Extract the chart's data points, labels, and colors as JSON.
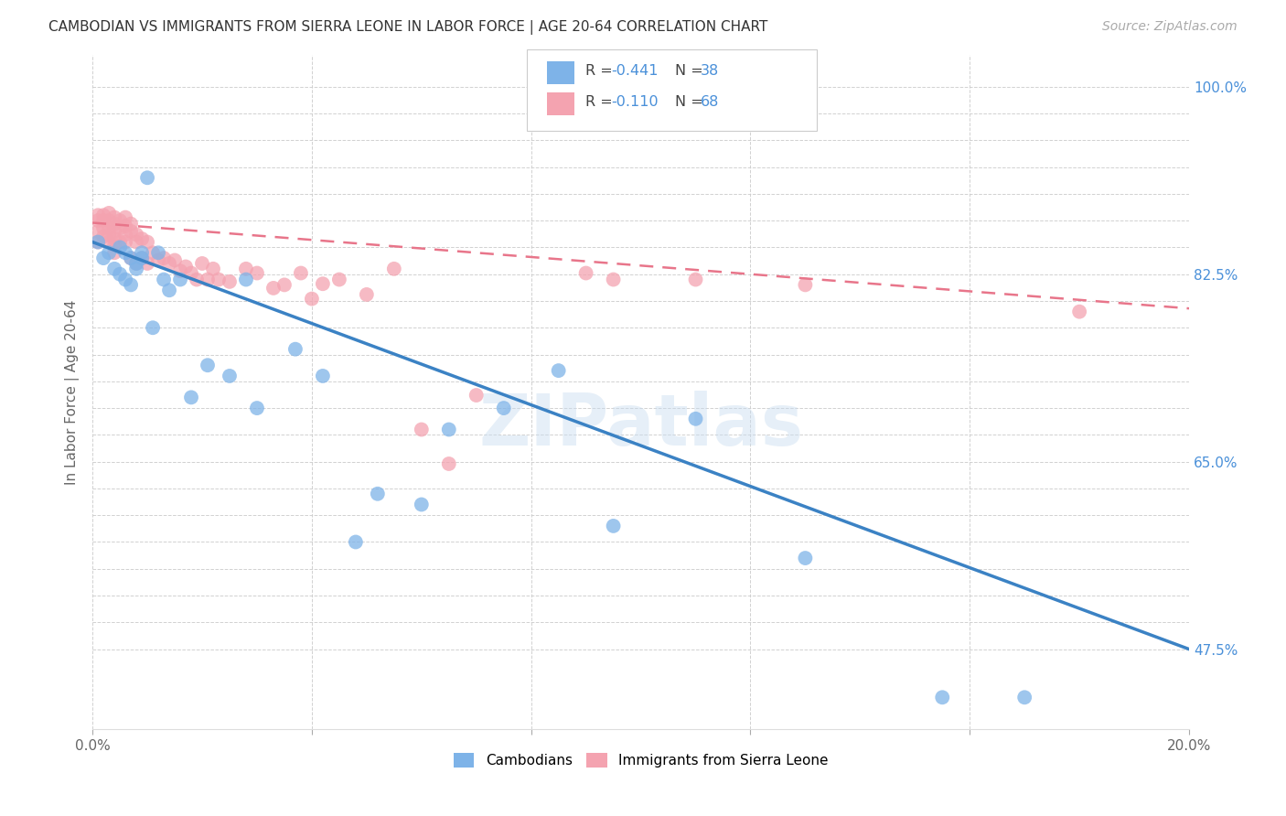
{
  "title": "CAMBODIAN VS IMMIGRANTS FROM SIERRA LEONE IN LABOR FORCE | AGE 20-64 CORRELATION CHART",
  "source": "Source: ZipAtlas.com",
  "ylabel_label": "In Labor Force | Age 20-64",
  "xlim": [
    0.0,
    0.2
  ],
  "ylim": [
    0.4,
    1.03
  ],
  "cambodian_color": "#7EB3E8",
  "sierra_leone_color": "#F4A3B0",
  "cambodian_line_color": "#3B82C4",
  "sierra_leone_line_color": "#E8758A",
  "background_color": "#ffffff",
  "watermark": "ZIPatlas",
  "cambodian_line_x": [
    0.0,
    0.2
  ],
  "cambodian_line_y": [
    0.855,
    0.475
  ],
  "sierra_line_x": [
    0.0,
    0.2
  ],
  "sierra_line_y": [
    0.873,
    0.793
  ],
  "cambodian_scatter_x": [
    0.001,
    0.002,
    0.003,
    0.004,
    0.005,
    0.005,
    0.006,
    0.006,
    0.007,
    0.007,
    0.008,
    0.008,
    0.009,
    0.009,
    0.01,
    0.011,
    0.012,
    0.013,
    0.014,
    0.016,
    0.018,
    0.021,
    0.025,
    0.03,
    0.037,
    0.042,
    0.052,
    0.065,
    0.075,
    0.085,
    0.095,
    0.11,
    0.13,
    0.155,
    0.17,
    0.028,
    0.048,
    0.06
  ],
  "cambodian_scatter_y": [
    0.855,
    0.84,
    0.845,
    0.83,
    0.85,
    0.825,
    0.845,
    0.82,
    0.84,
    0.815,
    0.835,
    0.83,
    0.84,
    0.845,
    0.915,
    0.775,
    0.845,
    0.82,
    0.81,
    0.82,
    0.71,
    0.74,
    0.73,
    0.7,
    0.755,
    0.73,
    0.62,
    0.68,
    0.7,
    0.735,
    0.59,
    0.69,
    0.56,
    0.43,
    0.43,
    0.82,
    0.575,
    0.61
  ],
  "sierra_scatter_x": [
    0.001,
    0.001,
    0.001,
    0.001,
    0.002,
    0.002,
    0.002,
    0.002,
    0.003,
    0.003,
    0.003,
    0.003,
    0.003,
    0.004,
    0.004,
    0.004,
    0.004,
    0.004,
    0.004,
    0.005,
    0.005,
    0.005,
    0.006,
    0.006,
    0.006,
    0.006,
    0.007,
    0.007,
    0.007,
    0.008,
    0.008,
    0.008,
    0.009,
    0.009,
    0.01,
    0.01,
    0.011,
    0.012,
    0.013,
    0.014,
    0.015,
    0.016,
    0.017,
    0.018,
    0.019,
    0.02,
    0.021,
    0.022,
    0.023,
    0.025,
    0.028,
    0.03,
    0.033,
    0.035,
    0.038,
    0.04,
    0.042,
    0.045,
    0.05,
    0.055,
    0.06,
    0.065,
    0.07,
    0.09,
    0.095,
    0.11,
    0.13,
    0.18
  ],
  "sierra_scatter_y": [
    0.88,
    0.875,
    0.865,
    0.855,
    0.88,
    0.875,
    0.868,
    0.86,
    0.882,
    0.875,
    0.868,
    0.862,
    0.855,
    0.878,
    0.872,
    0.865,
    0.858,
    0.852,
    0.845,
    0.875,
    0.868,
    0.855,
    0.878,
    0.87,
    0.862,
    0.855,
    0.872,
    0.865,
    0.84,
    0.862,
    0.855,
    0.835,
    0.858,
    0.84,
    0.855,
    0.835,
    0.845,
    0.838,
    0.84,
    0.835,
    0.838,
    0.828,
    0.832,
    0.826,
    0.82,
    0.835,
    0.82,
    0.83,
    0.82,
    0.818,
    0.83,
    0.826,
    0.812,
    0.815,
    0.826,
    0.802,
    0.816,
    0.82,
    0.806,
    0.83,
    0.68,
    0.648,
    0.712,
    0.826,
    0.82,
    0.82,
    0.815,
    0.79
  ],
  "y_tick_positions": [
    0.475,
    0.5,
    0.525,
    0.55,
    0.575,
    0.6,
    0.625,
    0.65,
    0.675,
    0.7,
    0.725,
    0.75,
    0.775,
    0.8,
    0.825,
    0.85,
    0.875,
    0.9,
    0.925,
    0.95,
    0.975,
    1.0
  ],
  "y_tick_labels": [
    "47.5%",
    "",
    "",
    "",
    "",
    "",
    "",
    "65.0%",
    "",
    "",
    "",
    "",
    "",
    "",
    "82.5%",
    "",
    "",
    "",
    "",
    "",
    "",
    "100.0%"
  ],
  "x_tick_positions": [
    0.0,
    0.04,
    0.08,
    0.12,
    0.16,
    0.2
  ],
  "x_tick_labels": [
    "0.0%",
    "",
    "",
    "",
    "",
    "20.0%"
  ]
}
